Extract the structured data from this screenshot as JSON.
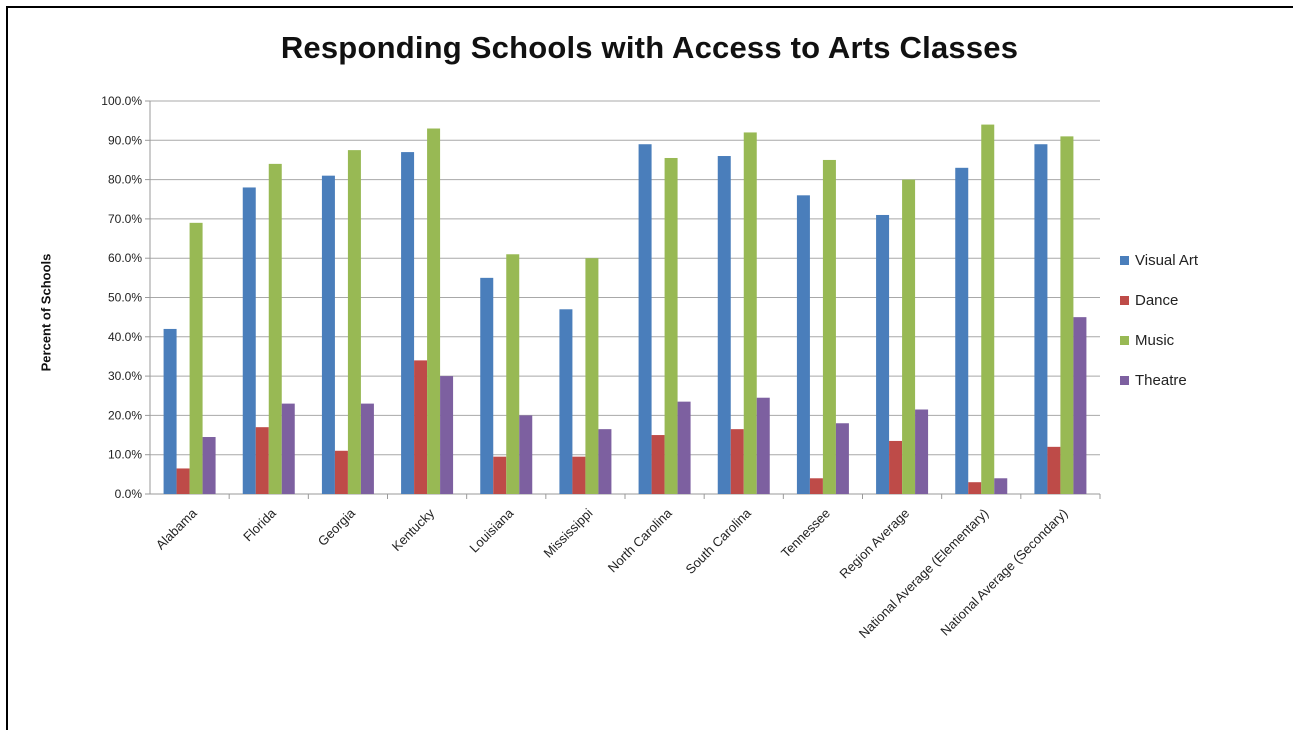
{
  "chart_data": {
    "type": "bar",
    "title": "Responding Schools with Access to Arts Classes",
    "ylabel": "Percent of Schools",
    "xlabel": "",
    "ylim": [
      0,
      100
    ],
    "yticks": [
      "0.0%",
      "10.0%",
      "20.0%",
      "30.0%",
      "40.0%",
      "50.0%",
      "60.0%",
      "70.0%",
      "80.0%",
      "90.0%",
      "100.0%"
    ],
    "grid": true,
    "legend_position": "right",
    "categories": [
      "Alabama",
      "Florida",
      "Georgia",
      "Kentucky",
      "Louisiana",
      "Mississippi",
      "North Carolina",
      "South Carolina",
      "Tennessee",
      "Region Average",
      "National Average (Elementary)",
      "National Average (Secondary)"
    ],
    "series": [
      {
        "name": "Visual Art",
        "color": "#4a7ebb",
        "values": [
          42,
          78,
          81,
          87,
          55,
          47,
          89,
          86,
          76,
          71,
          83,
          89
        ]
      },
      {
        "name": "Dance",
        "color": "#be4b48",
        "values": [
          6.5,
          17,
          11,
          34,
          9.5,
          9.5,
          15,
          16.5,
          4,
          13.5,
          3,
          12
        ]
      },
      {
        "name": "Music",
        "color": "#98b954",
        "values": [
          69,
          84,
          87.5,
          93,
          61,
          60,
          85.5,
          92,
          85,
          80,
          94,
          91
        ]
      },
      {
        "name": "Theatre",
        "color": "#7d60a0",
        "values": [
          14.5,
          23,
          23,
          30,
          20,
          16.5,
          23.5,
          24.5,
          18,
          21.5,
          4,
          45
        ]
      }
    ]
  }
}
